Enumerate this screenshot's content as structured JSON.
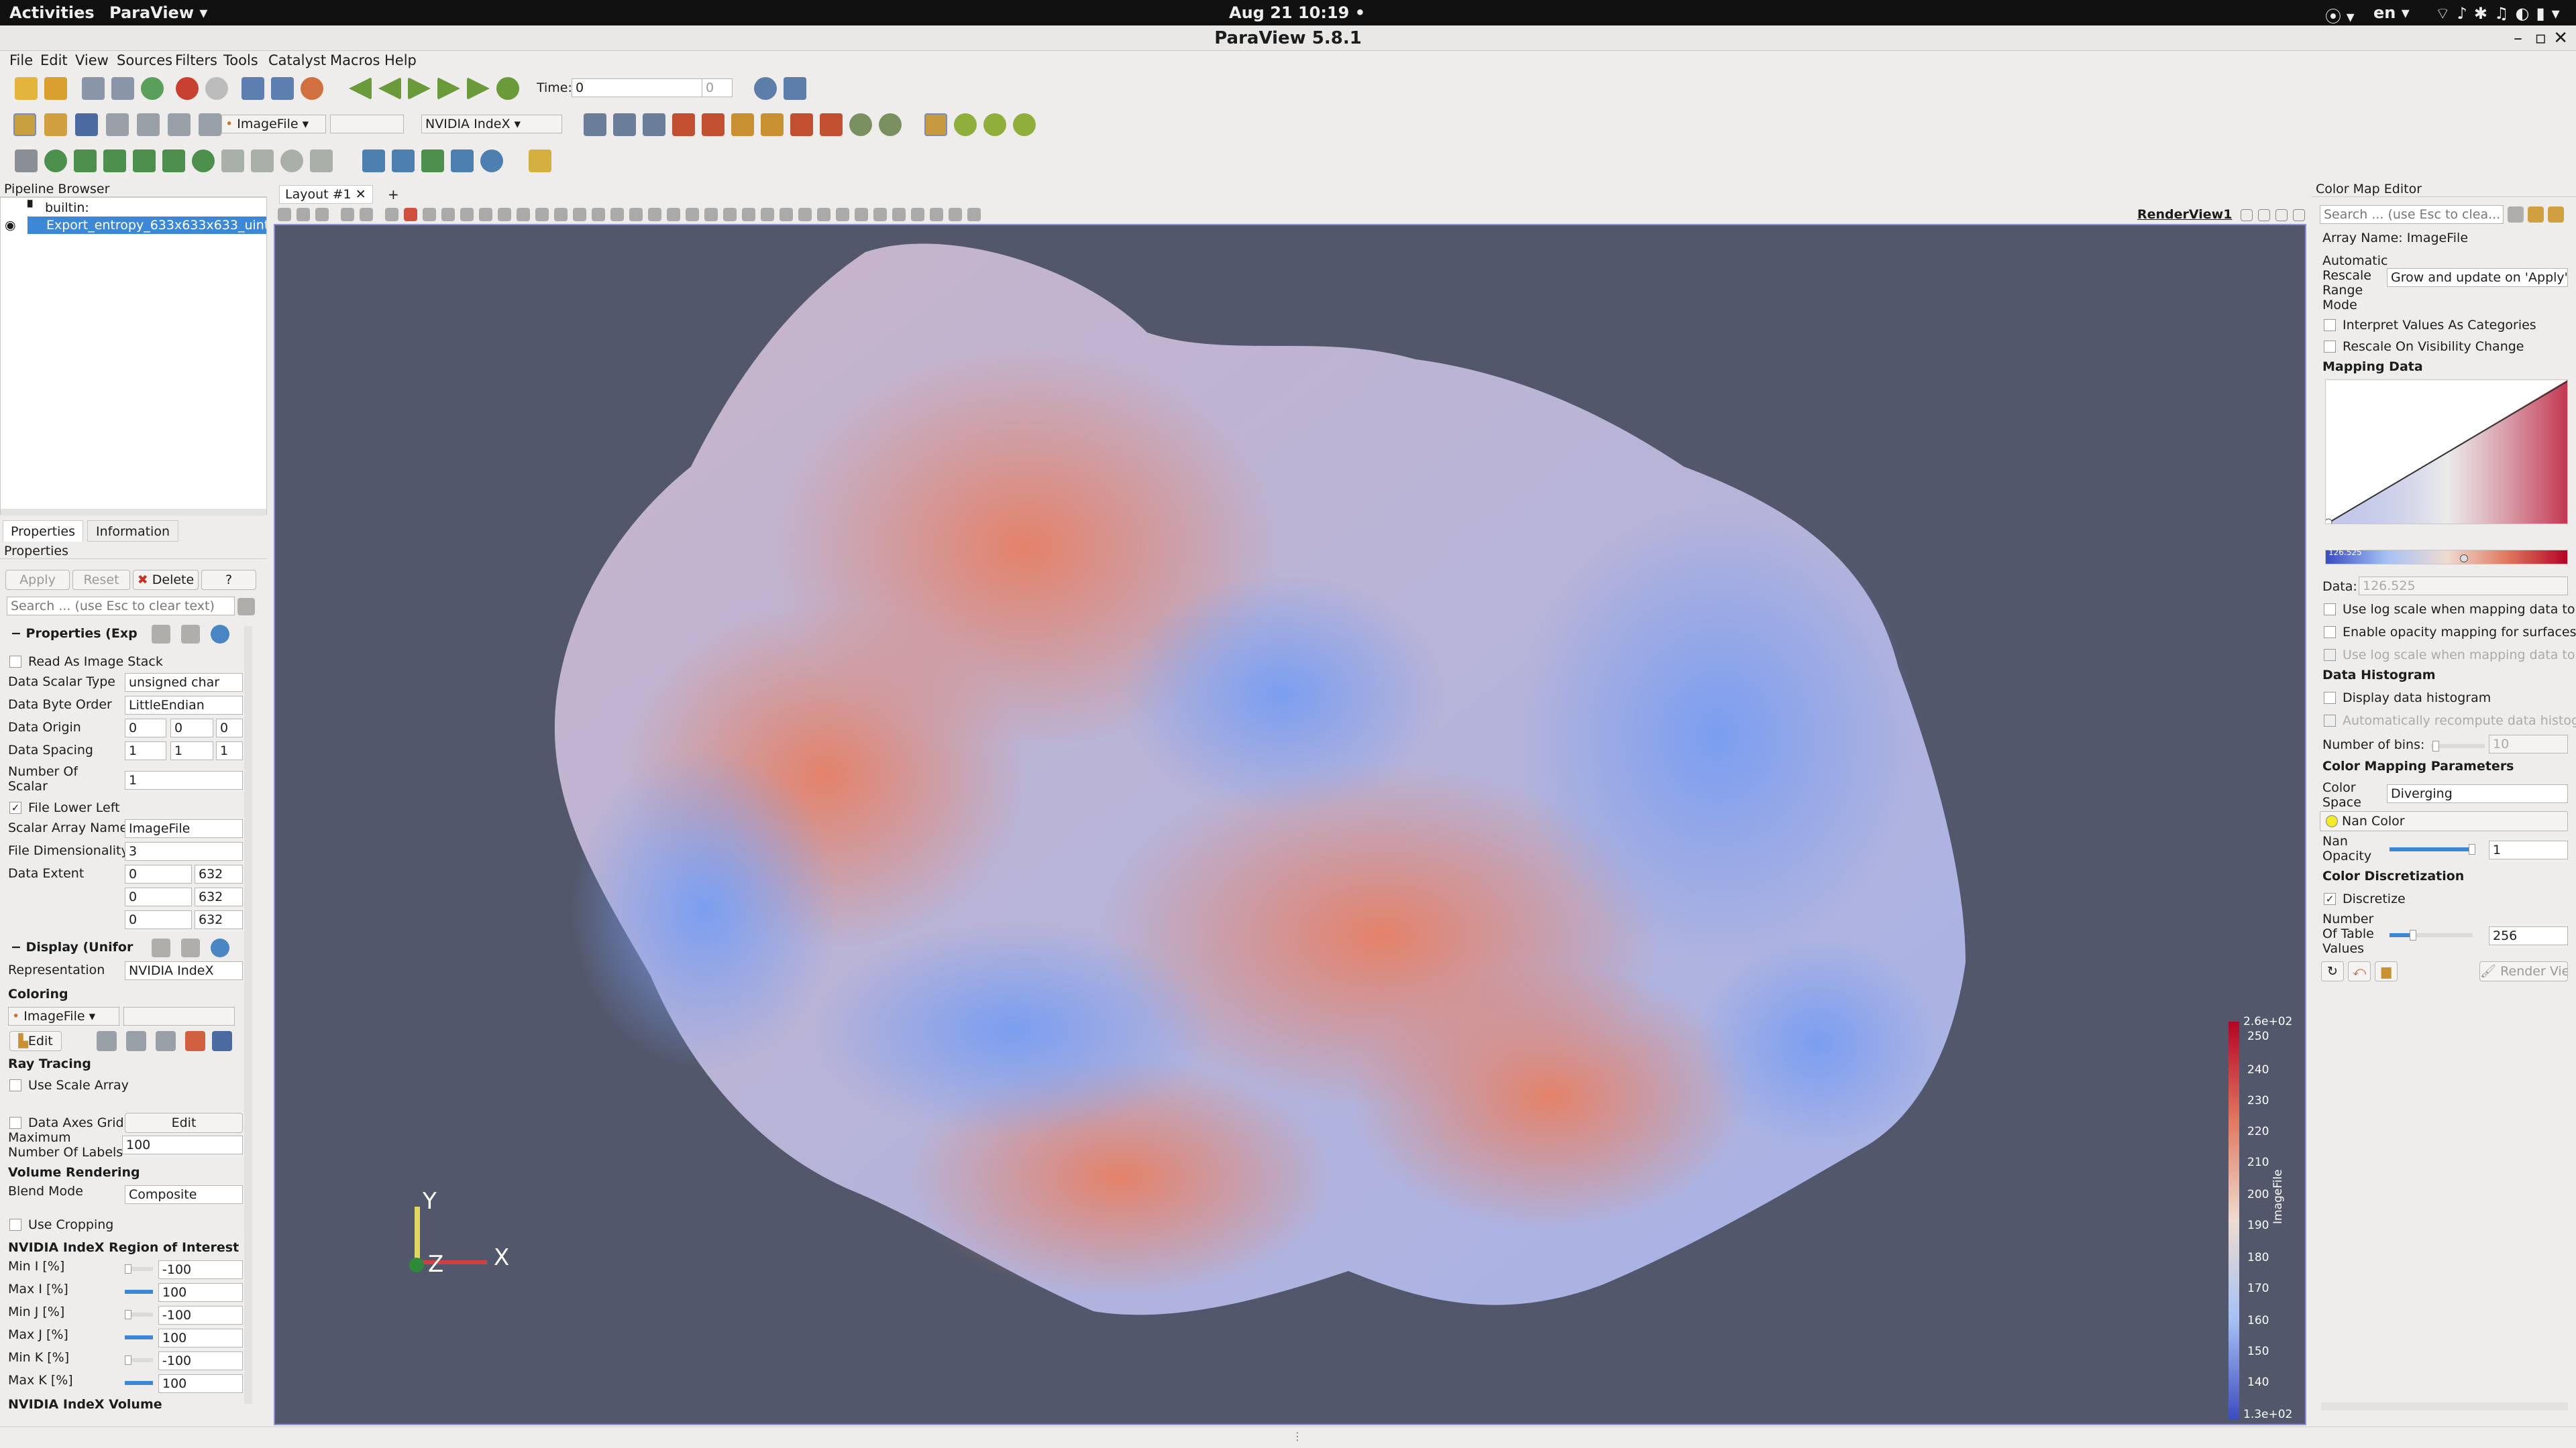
{
  "system": {
    "activities": "Activities",
    "app_menu": "ParaView ▾",
    "clock": "Aug 21  10:19 •",
    "lang": "en ▾",
    "title": "ParaView 5.8.1"
  },
  "menu": [
    "File",
    "Edit",
    "View",
    "Sources",
    "Filters",
    "Tools",
    "Catalyst",
    "Macros",
    "Help"
  ],
  "toolbar": {
    "time_label": "Time:",
    "time_value": "0",
    "time_index": "0",
    "color_by": "ImageFile",
    "representation": "NVIDIA IndeX"
  },
  "pipeline": {
    "title": "Pipeline Browser",
    "builtin": "builtin:",
    "source": "Export_entropy_633x633x633_uint8"
  },
  "tabs": {
    "properties": "Properties",
    "information": "Information"
  },
  "props": {
    "header": "Properties",
    "apply": "Apply",
    "reset": "Reset",
    "delete": "Delete",
    "help": "?",
    "search_placeholder": "Search ... (use Esc to clear text)",
    "section_props": "Properties (Exp",
    "read_stack": "Read As Image Stack",
    "scalar_type_label": "Data Scalar Type",
    "scalar_type": "unsigned char",
    "byte_order_label": "Data Byte Order",
    "byte_order": "LittleEndian",
    "origin_label": "Data Origin",
    "origin": [
      "0",
      "0",
      "0"
    ],
    "spacing_label": "Data Spacing",
    "spacing": [
      "1",
      "1",
      "1"
    ],
    "num_scalar_label1": "Number Of",
    "num_scalar_label2": "Scalar",
    "num_scalar": "1",
    "file_lower_left": "File Lower Left",
    "scalar_name_label": "Scalar Array Name",
    "scalar_name": "ImageFile",
    "file_dim_label": "File Dimensionality",
    "file_dim": "3",
    "extent_label": "Data Extent",
    "extent": [
      "0",
      "632",
      "0",
      "632",
      "0",
      "632"
    ],
    "section_display": "Display (Unifor",
    "repr_label": "Representation",
    "repr": "NVIDIA IndeX",
    "coloring": "Coloring",
    "color_array": "ImageFile",
    "edit": "Edit",
    "ray_tracing": "Ray Tracing",
    "use_scale": "Use Scale Array",
    "axes_grid": "Data Axes Grid",
    "axes_edit": "Edit",
    "max_labels_1": "Maximum",
    "max_labels_2": "Number Of Labels",
    "max_labels": "100",
    "volume_rendering": "Volume Rendering",
    "blend_label": "Blend Mode",
    "blend": "Composite",
    "use_cropping": "Use Cropping",
    "roi": "NVIDIA IndeX Region of Interest",
    "roi_rows": [
      {
        "label": "Min I [%]",
        "value": "-100"
      },
      {
        "label": "Max I [%]",
        "value": "100"
      },
      {
        "label": "Min J [%]",
        "value": "-100"
      },
      {
        "label": "Max J [%]",
        "value": "100"
      },
      {
        "label": "Min K [%]",
        "value": "-100"
      },
      {
        "label": "Max K [%]",
        "value": "100"
      }
    ],
    "volume": "NVIDIA IndeX Volume"
  },
  "view": {
    "layout_tab": "Layout #1",
    "add_tab": "+",
    "render_view": "RenderView1",
    "axes": {
      "y": "Y",
      "z": "Z",
      "x": "X"
    },
    "colorbar": {
      "title": "ImageFile",
      "max": "2.6e+02",
      "min": "1.3e+02",
      "ticks": [
        "250",
        "240",
        "230",
        "220",
        "210",
        "200",
        "190",
        "180",
        "170",
        "160",
        "150",
        "140"
      ]
    }
  },
  "cme": {
    "title": "Color Map Editor",
    "search_placeholder": "Search ... (use Esc to clea...",
    "array_name": "Array Name: ImageFile",
    "rescale_label": [
      "Automatic",
      "Rescale",
      "Range",
      "Mode"
    ],
    "rescale": "Grow and update on 'Apply'",
    "interpret": "Interpret Values As Categories",
    "rescale_vis": "Rescale On Visibility Change",
    "mapping_data": "Mapping Data",
    "handle_value": "126.525",
    "data_label": "Data:",
    "data_value": "126.525",
    "log_scale": "Use log scale when mapping data to",
    "opacity_mapping": "Enable opacity mapping for surfaces",
    "log_scale2": "Use log scale when mapping data to",
    "histogram": "Data Histogram",
    "display_hist": "Display data histogram",
    "auto_hist": "Automatically recompute data histog",
    "bins_label": "Number of bins:",
    "bins": "10",
    "params": "Color Mapping Parameters",
    "space_label": [
      "Color",
      "Space"
    ],
    "space": "Diverging",
    "nan_color": "Nan Color",
    "nan_opacity_label": [
      "Nan",
      "Opacity"
    ],
    "nan_opacity": "1",
    "discretization": "Color Discretization",
    "discretize": "Discretize",
    "table_values_label": [
      "Number",
      "Of Table",
      "Values"
    ],
    "table_values": "256",
    "render_views": "Render Vie"
  },
  "colors": {
    "accent": "#3d88d6",
    "viewport_bg": "#52576b",
    "cool": "#3b4cc0",
    "warm": "#b40426"
  }
}
